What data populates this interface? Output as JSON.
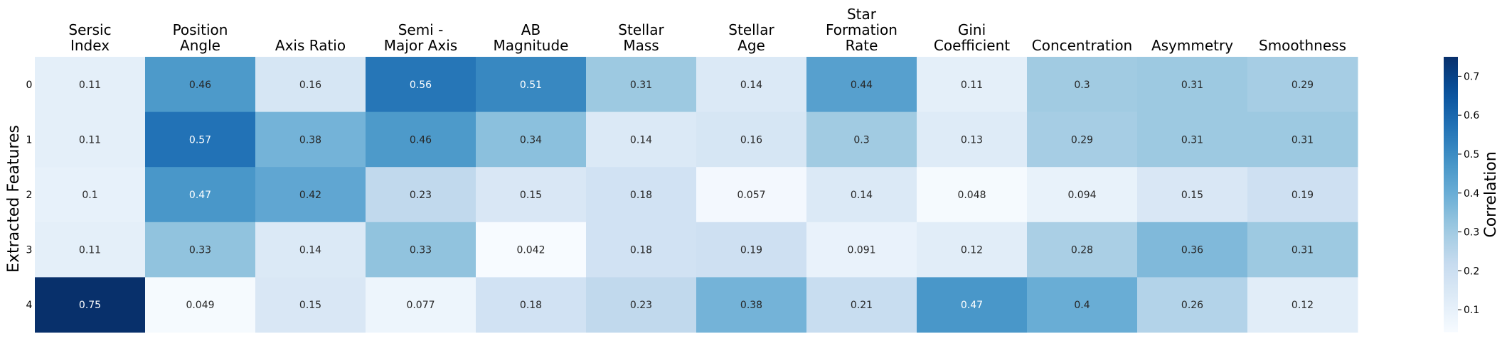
{
  "chart_data": {
    "type": "heatmap",
    "columns": [
      [
        "Sersic",
        "Index"
      ],
      [
        "Position",
        "Angle"
      ],
      [
        "Axis Ratio"
      ],
      [
        "Semi -",
        "Major Axis"
      ],
      [
        "AB",
        "Magnitude"
      ],
      [
        "Stellar",
        "Mass"
      ],
      [
        "Stellar",
        "Age"
      ],
      [
        "Star",
        "Formation",
        "Rate"
      ],
      [
        "Gini",
        "Coefficient"
      ],
      [
        "Concentration"
      ],
      [
        "Asymmetry"
      ],
      [
        "Smoothness"
      ]
    ],
    "rows": [
      "0",
      "1",
      "2",
      "3",
      "4"
    ],
    "values": [
      [
        0.11,
        0.46,
        0.16,
        0.56,
        0.51,
        0.31,
        0.14,
        0.44,
        0.11,
        0.3,
        0.31,
        0.29
      ],
      [
        0.11,
        0.57,
        0.38,
        0.46,
        0.34,
        0.14,
        0.16,
        0.3,
        0.13,
        0.29,
        0.31,
        0.31
      ],
      [
        0.1,
        0.47,
        0.42,
        0.23,
        0.15,
        0.18,
        0.057,
        0.14,
        0.048,
        0.094,
        0.15,
        0.19
      ],
      [
        0.11,
        0.33,
        0.14,
        0.33,
        0.042,
        0.18,
        0.19,
        0.091,
        0.12,
        0.28,
        0.36,
        0.31
      ],
      [
        0.75,
        0.049,
        0.15,
        0.077,
        0.18,
        0.23,
        0.38,
        0.21,
        0.47,
        0.4,
        0.26,
        0.12
      ]
    ],
    "cell_labels": [
      [
        "0.11",
        "0.46",
        "0.16",
        "0.56",
        "0.51",
        "0.31",
        "0.14",
        "0.44",
        "0.11",
        "0.3",
        "0.31",
        "0.29"
      ],
      [
        "0.11",
        "0.57",
        "0.38",
        "0.46",
        "0.34",
        "0.14",
        "0.16",
        "0.3",
        "0.13",
        "0.29",
        "0.31",
        "0.31"
      ],
      [
        "0.1",
        "0.47",
        "0.42",
        "0.23",
        "0.15",
        "0.18",
        "0.057",
        "0.14",
        "0.048",
        "0.094",
        "0.15",
        "0.19"
      ],
      [
        "0.11",
        "0.33",
        "0.14",
        "0.33",
        "0.042",
        "0.18",
        "0.19",
        "0.091",
        "0.12",
        "0.28",
        "0.36",
        "0.31"
      ],
      [
        "0.75",
        "0.049",
        "0.15",
        "0.077",
        "0.18",
        "0.23",
        "0.38",
        "0.21",
        "0.47",
        "0.4",
        "0.26",
        "0.12"
      ]
    ],
    "ylabel": "Extracted Features",
    "colorbar": {
      "label": "Correlation",
      "range": [
        0.042,
        0.75
      ],
      "ticks": [
        0.1,
        0.2,
        0.3,
        0.4,
        0.5,
        0.6,
        0.7
      ],
      "tick_labels": [
        "0.1",
        "0.2",
        "0.3",
        "0.4",
        "0.5",
        "0.6",
        "0.7"
      ]
    },
    "colormap": "Blues",
    "x_axis_position": "top",
    "grid": false
  }
}
